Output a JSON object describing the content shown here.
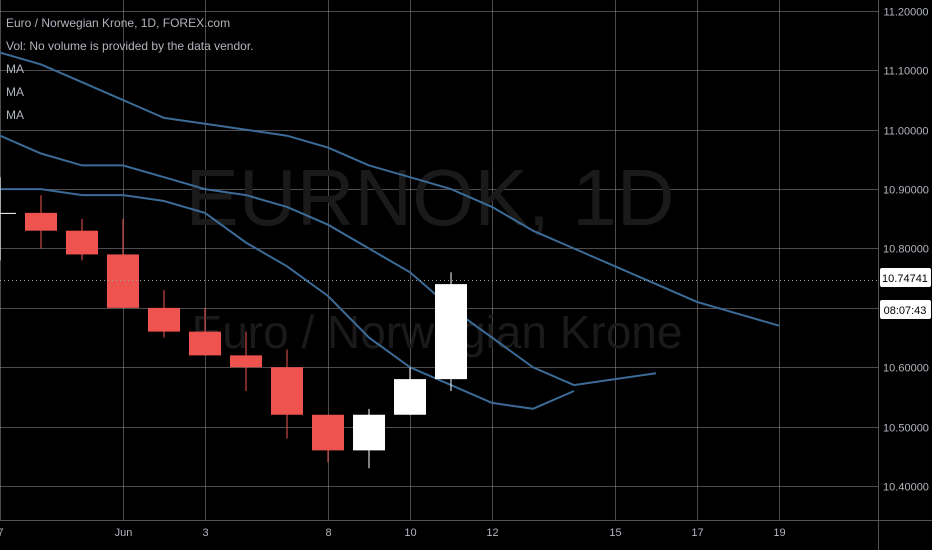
{
  "legend": {
    "title": "Euro / Norwegian Krone, 1D, FOREX.com",
    "volume_note": "Vol: No volume is provided by the data vendor.",
    "ma_labels": [
      "MA",
      "MA",
      "MA"
    ]
  },
  "watermark": {
    "symbol": "EURNOK, 1D",
    "name": "Euro / Norwegian Krone"
  },
  "colors": {
    "background": "#000000",
    "grid": "#8a8a8a",
    "up_candle": "#ffffff",
    "down_candle": "#ef5350",
    "ma_line": "#3b6b96",
    "axis_text": "#b2b5be"
  },
  "chart_data": {
    "type": "candlestick",
    "ylim": [
      10.36,
      11.22
    ],
    "y_ticks": [
      "11.20000",
      "11.10000",
      "11.00000",
      "10.90000",
      "10.80000",
      "10.70000",
      "10.60000",
      "10.50000",
      "10.40000"
    ],
    "x_ticks": [
      "7",
      "Jun",
      "3",
      "8",
      "10",
      "12",
      "15",
      "17",
      "19"
    ],
    "last_price_label": "10.74741",
    "countdown_label": "08:07:43",
    "candles": [
      {
        "open": 10.86,
        "high": 10.92,
        "low": 10.78,
        "close": 10.86
      },
      {
        "open": 10.86,
        "high": 10.89,
        "low": 10.8,
        "close": 10.83
      },
      {
        "open": 10.83,
        "high": 10.85,
        "low": 10.78,
        "close": 10.79
      },
      {
        "open": 10.79,
        "high": 10.85,
        "low": 10.7,
        "close": 10.7
      },
      {
        "open": 10.7,
        "high": 10.73,
        "low": 10.65,
        "close": 10.66
      },
      {
        "open": 10.66,
        "high": 10.7,
        "low": 10.62,
        "close": 10.62
      },
      {
        "open": 10.62,
        "high": 10.66,
        "low": 10.56,
        "close": 10.6
      },
      {
        "open": 10.6,
        "high": 10.63,
        "low": 10.48,
        "close": 10.52
      },
      {
        "open": 10.52,
        "high": 10.52,
        "low": 10.44,
        "close": 10.46
      },
      {
        "open": 10.46,
        "high": 10.53,
        "low": 10.43,
        "close": 10.52
      },
      {
        "open": 10.52,
        "high": 10.6,
        "low": 10.52,
        "close": 10.58
      },
      {
        "open": 10.58,
        "high": 10.76,
        "low": 10.56,
        "close": 10.74
      }
    ],
    "ma_series": [
      {
        "start_index": 0,
        "values": [
          11.13,
          11.11,
          11.08,
          11.05,
          11.02,
          11.01,
          11.0,
          10.99,
          10.97,
          10.94,
          10.92,
          10.9,
          10.87,
          10.83,
          10.8,
          10.77,
          10.74,
          10.71,
          10.69,
          10.67
        ]
      },
      {
        "start_index": 0,
        "values": [
          10.99,
          10.96,
          10.94,
          10.94,
          10.92,
          10.9,
          10.89,
          10.87,
          10.84,
          10.8,
          10.76,
          10.7,
          10.65,
          10.6,
          10.57,
          10.58,
          10.59
        ]
      },
      {
        "start_index": 0,
        "values": [
          10.9,
          10.9,
          10.89,
          10.89,
          10.88,
          10.86,
          10.81,
          10.77,
          10.72,
          10.65,
          10.6,
          10.57,
          10.54,
          10.53,
          10.56
        ]
      }
    ]
  }
}
